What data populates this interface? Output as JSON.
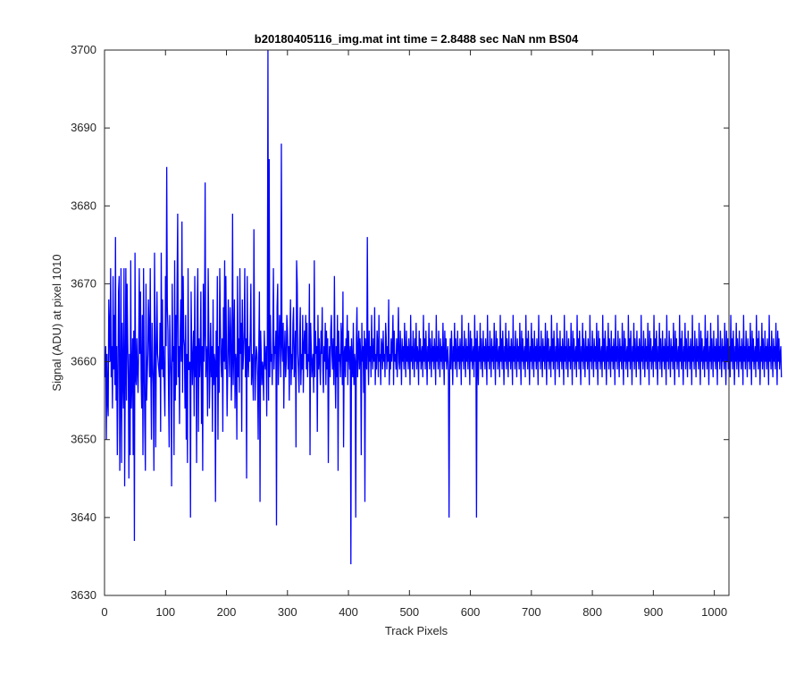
{
  "figure": {
    "background": "#ffffff",
    "line_color": "#0000ff",
    "axes_color": "#262626"
  },
  "chart_data": {
    "type": "line",
    "title": "b20180405116_img.mat int time = 2.8488 sec  NaN nm BS04",
    "xlabel": "Track Pixels",
    "ylabel": "Signal (ADU) at pixel 1010",
    "xlim": [
      0,
      1024
    ],
    "ylim": [
      3630,
      3700
    ],
    "xticks": [
      0,
      100,
      200,
      300,
      400,
      500,
      600,
      700,
      800,
      900,
      1000
    ],
    "yticks": [
      3630,
      3640,
      3650,
      3660,
      3670,
      3680,
      3690,
      3700
    ],
    "grid": false,
    "legend": "none",
    "series": [
      {
        "color": "#0000ff",
        "x_start": 1,
        "x_step": 1,
        "values": [
          3658,
          3662,
          3650,
          3661,
          3655,
          3653,
          3668,
          3664,
          3660,
          3672,
          3658,
          3662,
          3654,
          3671,
          3659,
          3666,
          3657,
          3676,
          3655,
          3662,
          3648,
          3657,
          3669,
          3671,
          3646,
          3656,
          3672,
          3647,
          3665,
          3658,
          3654,
          3672,
          3644,
          3658,
          3672,
          3655,
          3670,
          3663,
          3658,
          3645,
          3661,
          3648,
          3673,
          3654,
          3658,
          3663,
          3648,
          3664,
          3637,
          3674,
          3658,
          3657,
          3663,
          3659,
          3656,
          3662,
          3672,
          3661,
          3669,
          3658,
          3654,
          3666,
          3648,
          3672,
          3660,
          3652,
          3646,
          3670,
          3655,
          3658,
          3661,
          3668,
          3664,
          3658,
          3672,
          3658,
          3650,
          3665,
          3660,
          3657,
          3646,
          3674,
          3663,
          3649,
          3662,
          3669,
          3661,
          3660,
          3659,
          3658,
          3665,
          3651,
          3674,
          3659,
          3668,
          3658,
          3662,
          3657,
          3653,
          3671,
          3662,
          3685,
          3667,
          3664,
          3656,
          3649,
          3666,
          3661,
          3658,
          3644,
          3670,
          3660,
          3662,
          3648,
          3673,
          3655,
          3666,
          3657,
          3670,
          3679,
          3658,
          3662,
          3652,
          3663,
          3668,
          3660,
          3678,
          3656,
          3671,
          3663,
          3662,
          3654,
          3666,
          3650,
          3661,
          3647,
          3672,
          3659,
          3659,
          3660,
          3640,
          3669,
          3662,
          3657,
          3661,
          3664,
          3653,
          3671,
          3658,
          3662,
          3647,
          3667,
          3672,
          3651,
          3663,
          3658,
          3661,
          3669,
          3652,
          3662,
          3646,
          3670,
          3660,
          3664,
          3683,
          3658,
          3662,
          3661,
          3653,
          3672,
          3664,
          3654,
          3659,
          3665,
          3658,
          3662,
          3651,
          3668,
          3657,
          3661,
          3660,
          3642,
          3664,
          3658,
          3671,
          3650,
          3662,
          3656,
          3672,
          3665,
          3660,
          3658,
          3663,
          3651,
          3667,
          3660,
          3673,
          3659,
          3671,
          3661,
          3653,
          3659,
          3668,
          3662,
          3658,
          3667,
          3664,
          3655,
          3660,
          3679,
          3657,
          3662,
          3668,
          3654,
          3661,
          3660,
          3650,
          3671,
          3658,
          3663,
          3656,
          3672,
          3661,
          3665,
          3651,
          3668,
          3659,
          3661,
          3664,
          3672,
          3658,
          3663,
          3645,
          3671,
          3661,
          3658,
          3662,
          3660,
          3664,
          3670,
          3657,
          3661,
          3659,
          3655,
          3677,
          3663,
          3655,
          3660,
          3662,
          3661,
          3658,
          3650,
          3662,
          3669,
          3642,
          3664,
          3661,
          3657,
          3660,
          3659,
          3655,
          3664,
          3660,
          3659,
          3662,
          3653,
          3663,
          3700,
          3655,
          3686,
          3658,
          3666,
          3660,
          3661,
          3657,
          3663,
          3672,
          3659,
          3662,
          3661,
          3664,
          3639,
          3667,
          3670,
          3657,
          3661,
          3666,
          3663,
          3658,
          3688,
          3662,
          3660,
          3665,
          3654,
          3661,
          3664,
          3658,
          3660,
          3666,
          3664,
          3659,
          3662,
          3655,
          3663,
          3668,
          3657,
          3661,
          3659,
          3665,
          3667,
          3658,
          3660,
          3664,
          3649,
          3673,
          3670,
          3661,
          3659,
          3656,
          3663,
          3667,
          3657,
          3661,
          3659,
          3666,
          3656,
          3662,
          3664,
          3661,
          3666,
          3659,
          3665,
          3658,
          3661,
          3660,
          3670,
          3648,
          3665,
          3662,
          3658,
          3660,
          3661,
          3656,
          3673,
          3658,
          3664,
          3661,
          3662,
          3651,
          3666,
          3659,
          3663,
          3660,
          3657,
          3664,
          3661,
          3667,
          3659,
          3656,
          3662,
          3660,
          3665,
          3657,
          3664,
          3659,
          3663,
          3647,
          3660,
          3662,
          3658,
          3664,
          3666,
          3661,
          3659,
          3663,
          3657,
          3671,
          3660,
          3654,
          3662,
          3658,
          3666,
          3646,
          3664,
          3660,
          3661,
          3658,
          3665,
          3663,
          3657,
          3669,
          3649,
          3661,
          3662,
          3658,
          3663,
          3660,
          3666,
          3657,
          3664,
          3661,
          3659,
          3662,
          3634,
          3663,
          3660,
          3658,
          3665,
          3657,
          3661,
          3660,
          3640,
          3663,
          3667,
          3658,
          3661,
          3664,
          3659,
          3663,
          3661,
          3648,
          3665,
          3660,
          3662,
          3656,
          3664,
          3642,
          3663,
          3660,
          3659,
          3676,
          3661,
          3657,
          3664,
          3660,
          3662,
          3658,
          3666,
          3661,
          3659,
          3663,
          3660,
          3667,
          3657,
          3661,
          3659,
          3664,
          3662,
          3658,
          3666,
          3660,
          3661,
          3657,
          3663,
          3662,
          3659,
          3664,
          3660,
          3661,
          3658,
          3665,
          3663,
          3659,
          3662,
          3660,
          3668,
          3657,
          3661,
          3659,
          3663,
          3660,
          3662,
          3666,
          3657,
          3664,
          3660,
          3661,
          3659,
          3663,
          3658,
          3662,
          3667,
          3660,
          3659,
          3664,
          3661,
          3657,
          3663,
          3660,
          3662,
          3659,
          3665,
          3661,
          3658,
          3664,
          3660,
          3662,
          3659,
          3663,
          3661,
          3657,
          3666,
          3660,
          3662,
          3659,
          3664,
          3661,
          3658,
          3663,
          3660,
          3665,
          3659,
          3662,
          3661,
          3657,
          3664,
          3660,
          3663,
          3659,
          3661,
          3662,
          3658,
          3666,
          3660,
          3663,
          3659,
          3664,
          3661,
          3657,
          3662,
          3660,
          3665,
          3659,
          3663,
          3661,
          3658,
          3664,
          3660,
          3662,
          3659,
          3663,
          3661,
          3657,
          3666,
          3660,
          3662,
          3659,
          3664,
          3661,
          3658,
          3663,
          3660,
          3662,
          3659,
          3665,
          3661,
          3657,
          3664,
          3660,
          3663,
          3659,
          3661,
          3662,
          3658,
          3640,
          3660,
          3663,
          3659,
          3664,
          3661,
          3657,
          3662,
          3660,
          3665,
          3659,
          3663,
          3661,
          3658,
          3664,
          3660,
          3662,
          3659,
          3663,
          3661,
          3657,
          3666,
          3660,
          3662,
          3659,
          3664,
          3661,
          3658,
          3663,
          3660,
          3662,
          3659,
          3665,
          3661,
          3657,
          3664,
          3660,
          3663,
          3659,
          3661,
          3662,
          3658,
          3666,
          3660,
          3663,
          3640,
          3664,
          3661,
          3657,
          3662,
          3660,
          3665,
          3659,
          3663,
          3661,
          3658,
          3664,
          3660,
          3662,
          3659,
          3663,
          3661,
          3657,
          3666,
          3660,
          3662,
          3659,
          3664,
          3661,
          3658,
          3663,
          3660,
          3662,
          3659,
          3665,
          3661,
          3657,
          3664,
          3660,
          3663,
          3659,
          3661,
          3662,
          3658,
          3666,
          3660,
          3663,
          3659,
          3664,
          3661,
          3657,
          3662,
          3660,
          3665,
          3659,
          3663,
          3661,
          3658,
          3664,
          3660,
          3662,
          3659,
          3663,
          3661,
          3657,
          3666,
          3660,
          3662,
          3659,
          3664,
          3661,
          3658,
          3663,
          3660,
          3662,
          3659,
          3665,
          3661,
          3657,
          3664,
          3660,
          3663,
          3659,
          3661,
          3662,
          3658,
          3666,
          3660,
          3663,
          3659,
          3664,
          3661,
          3657,
          3662,
          3660,
          3665,
          3659,
          3663,
          3661,
          3658,
          3664,
          3660,
          3662,
          3659,
          3663,
          3661,
          3657,
          3666,
          3660,
          3662,
          3659,
          3664,
          3661,
          3658,
          3663,
          3660,
          3662,
          3659,
          3665,
          3661,
          3657,
          3664,
          3660,
          3663,
          3659,
          3661,
          3662,
          3658,
          3666,
          3660,
          3663,
          3659,
          3664,
          3661,
          3657,
          3662,
          3660,
          3665,
          3659,
          3663,
          3661,
          3658,
          3664,
          3660,
          3662,
          3659,
          3663,
          3661,
          3657,
          3666,
          3660,
          3662,
          3659,
          3664,
          3661,
          3658,
          3663,
          3660,
          3662,
          3659,
          3665,
          3661,
          3657,
          3664,
          3660,
          3663,
          3659,
          3661,
          3662,
          3658,
          3666,
          3660,
          3663,
          3659,
          3664,
          3661,
          3657,
          3662,
          3660,
          3665,
          3659,
          3663,
          3661,
          3658,
          3664,
          3660,
          3662,
          3659,
          3663,
          3661,
          3657,
          3666,
          3660,
          3662,
          3659,
          3664,
          3661,
          3658,
          3663,
          3660,
          3662,
          3659,
          3665,
          3661,
          3657,
          3664,
          3660,
          3663,
          3659,
          3661,
          3662,
          3658,
          3666,
          3660,
          3663,
          3659,
          3664,
          3661,
          3657,
          3662,
          3660,
          3665,
          3659,
          3663,
          3661,
          3658,
          3664,
          3660,
          3662,
          3659,
          3663,
          3661,
          3657,
          3666,
          3660,
          3662,
          3659,
          3664,
          3661,
          3658,
          3663,
          3660,
          3662,
          3659,
          3665,
          3661,
          3657,
          3664,
          3660,
          3663,
          3659,
          3661,
          3662,
          3658,
          3666,
          3660,
          3663,
          3659,
          3664,
          3661,
          3657,
          3662,
          3660,
          3665,
          3659,
          3663,
          3661,
          3658,
          3664,
          3660,
          3662,
          3659,
          3663,
          3661,
          3657,
          3666,
          3660,
          3662,
          3659,
          3664,
          3661,
          3658,
          3663,
          3660,
          3662,
          3659,
          3665,
          3661,
          3657,
          3664,
          3660,
          3663,
          3659,
          3661,
          3662,
          3658,
          3666,
          3660,
          3663,
          3659,
          3664,
          3661,
          3657,
          3662,
          3660,
          3665,
          3659,
          3663,
          3661,
          3658,
          3664,
          3660,
          3662,
          3659,
          3663,
          3661,
          3657,
          3666,
          3660,
          3662,
          3659,
          3664,
          3661,
          3658,
          3663,
          3660,
          3662,
          3659,
          3665,
          3661,
          3657,
          3664,
          3660,
          3663,
          3659,
          3661,
          3662,
          3658,
          3666,
          3660,
          3663,
          3659,
          3664,
          3661,
          3657,
          3662,
          3660,
          3665,
          3659,
          3663,
          3661,
          3658,
          3664,
          3660,
          3662,
          3659,
          3663,
          3661,
          3657,
          3666,
          3660,
          3662,
          3659,
          3664,
          3661,
          3658,
          3663,
          3660,
          3662,
          3659,
          3665,
          3661,
          3657,
          3664,
          3660,
          3663,
          3659,
          3661,
          3662,
          3658,
          3666,
          3660,
          3663,
          3659,
          3664,
          3661,
          3657,
          3662,
          3660,
          3665,
          3659,
          3663,
          3661,
          3658,
          3664,
          3660,
          3662,
          3659,
          3663,
          3661,
          3657,
          3666,
          3660,
          3662,
          3659,
          3664,
          3661,
          3658,
          3663,
          3660,
          3662,
          3659,
          3665,
          3661,
          3657,
          3664,
          3660,
          3663,
          3659,
          3661,
          3662,
          3658,
          3666,
          3660,
          3663,
          3659,
          3664,
          3661,
          3657,
          3662,
          3660,
          3665,
          3659,
          3663,
          3661,
          3658,
          3664,
          3660,
          3662,
          3659,
          3663,
          3661,
          3657,
          3666,
          3660,
          3662,
          3659,
          3664,
          3661,
          3658,
          3663,
          3660,
          3662,
          3659,
          3665,
          3661,
          3657,
          3664,
          3660,
          3663,
          3659,
          3661,
          3662,
          3658,
          3666,
          3660,
          3663,
          3659,
          3664,
          3661,
          3657,
          3662,
          3660,
          3665,
          3659,
          3663,
          3661,
          3658,
          3664,
          3660,
          3662,
          3659,
          3663,
          3661,
          3657,
          3666,
          3660,
          3662,
          3659,
          3664,
          3661,
          3658,
          3663,
          3660,
          3662,
          3659,
          3665,
          3661,
          3657,
          3664,
          3660,
          3663,
          3659,
          3661,
          3662,
          3658
        ]
      }
    ]
  }
}
